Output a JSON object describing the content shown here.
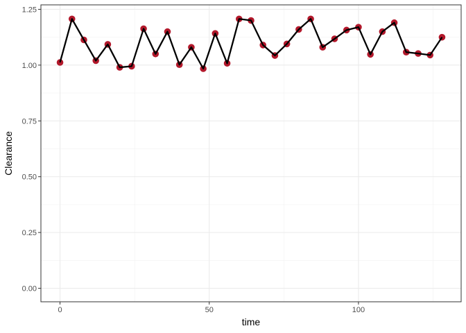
{
  "chart_data": {
    "type": "line",
    "xlabel": "time",
    "ylabel": "Clearance",
    "xlim": [
      -6.4,
      134.4
    ],
    "ylim": [
      -0.0605,
      1.27
    ],
    "x_ticks": [
      0,
      50,
      100
    ],
    "x_tick_labels": [
      "0",
      "50",
      "100"
    ],
    "x_minor_ticks": [
      25,
      75,
      125
    ],
    "y_ticks": [
      0.0,
      0.25,
      0.5,
      0.75,
      1.0,
      1.25
    ],
    "y_tick_labels": [
      "0.00",
      "0.25",
      "0.50",
      "0.75",
      "1.00",
      "1.25"
    ],
    "y_minor_ticks": [
      0.125,
      0.375,
      0.625,
      0.875,
      1.125
    ],
    "grid": true,
    "point_color": "#b2182b",
    "line_color": "#000000",
    "series": [
      {
        "x": [
          0,
          4,
          8,
          12,
          16,
          20,
          24,
          28,
          32,
          36,
          40,
          44,
          48,
          52,
          56,
          60,
          64,
          68,
          72,
          76,
          80,
          84,
          88,
          92,
          96,
          100,
          104,
          108,
          112,
          116,
          120,
          124,
          128
        ],
        "y": [
          1.012,
          1.207,
          1.113,
          1.02,
          1.093,
          0.99,
          0.995,
          1.163,
          1.05,
          1.15,
          1.002,
          1.08,
          0.984,
          1.142,
          1.008,
          1.207,
          1.2,
          1.09,
          1.043,
          1.095,
          1.16,
          1.207,
          1.08,
          1.118,
          1.157,
          1.17,
          1.048,
          1.15,
          1.19,
          1.058,
          1.052,
          1.045,
          1.125
        ]
      }
    ]
  }
}
